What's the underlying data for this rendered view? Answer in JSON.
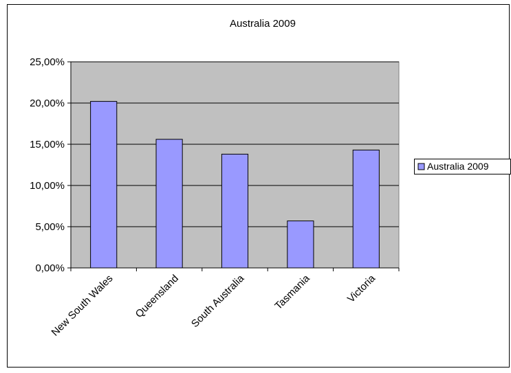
{
  "chart_data": {
    "type": "bar",
    "title": "Australia 2009",
    "categories": [
      "New South Wales",
      "Queensland",
      "South Australia",
      "Tasmania",
      "Victoria"
    ],
    "series": [
      {
        "name": "Australia 2009",
        "values": [
          20.2,
          15.6,
          13.8,
          5.7,
          14.3
        ]
      }
    ],
    "ylim": [
      0,
      25
    ],
    "yticks": [
      "0,00%",
      "5,00%",
      "10,00%",
      "15,00%",
      "20,00%",
      "25,00%"
    ],
    "grid": true,
    "legend": "right",
    "colors": {
      "bar_fill": "#9999ff",
      "plot_bg": "#c0c0c0",
      "border": "#000000"
    }
  }
}
